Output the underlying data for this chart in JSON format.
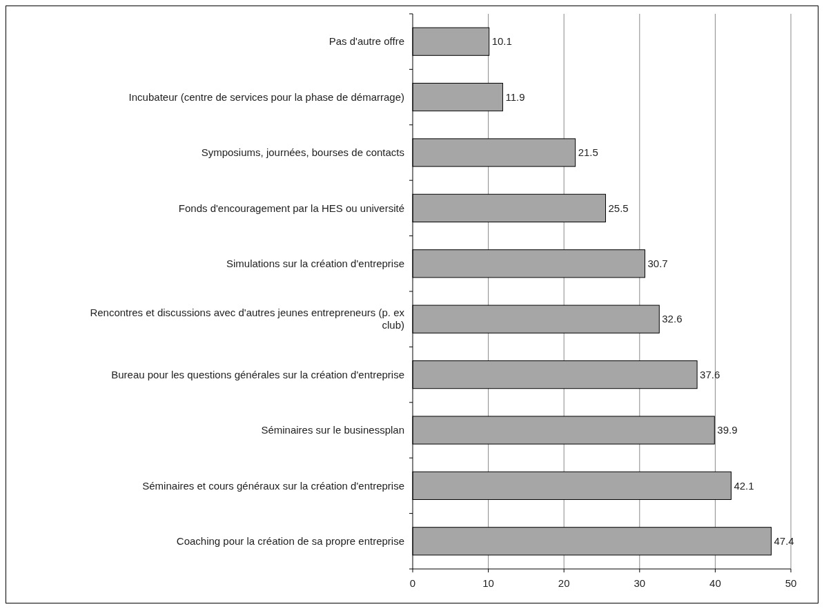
{
  "chart_data": {
    "type": "bar",
    "orientation": "horizontal",
    "categories": [
      "Pas d'autre offre",
      "Incubateur (centre de services pour la phase de démarrage)",
      "Symposiums, journées, bourses de contacts",
      "Fonds d'encouragement par la HES ou université",
      "Simulations sur la création d'entreprise",
      "Rencontres et discussions avec d'autres jeunes entrepreneurs (p. ex club)",
      "Bureau pour les questions générales sur la création d'entreprise",
      "Séminaires sur le businessplan",
      "Séminaires et cours généraux sur la création d'entreprise",
      "Coaching pour la création de sa propre entreprise"
    ],
    "values": [
      10.1,
      11.9,
      21.5,
      25.5,
      30.7,
      32.6,
      37.6,
      39.9,
      42.1,
      47.4
    ],
    "color": "#a6a6a6",
    "xlim": [
      0,
      50
    ],
    "xticks": [
      0,
      10,
      20,
      30,
      40,
      50
    ],
    "grid": "x",
    "data_labels": true
  }
}
